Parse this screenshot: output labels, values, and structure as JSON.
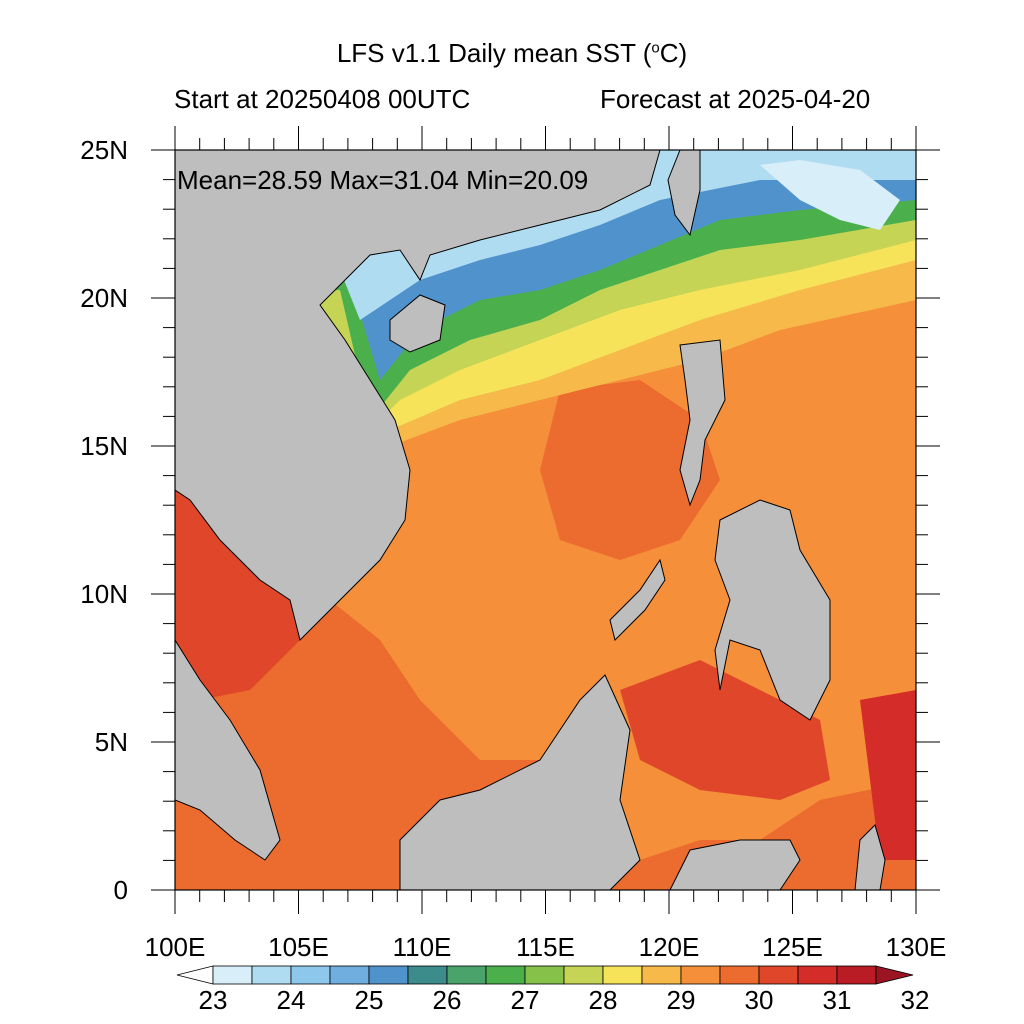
{
  "title": "LFS v1.1 Daily mean SST (",
  "title_unit_sup": "o",
  "title_unit_tail": "C)",
  "subtitle_left": "Start at 20250408 00UTC",
  "subtitle_right": "Forecast at 2025-04-20",
  "stats": "Mean=28.59  Max=31.04  Min=20.09",
  "lat_labels": [
    "25N",
    "20N",
    "15N",
    "10N",
    "5N",
    "0"
  ],
  "lon_labels": [
    "100E",
    "105E",
    "110E",
    "115E",
    "120E",
    "125E",
    "130E"
  ],
  "colorbar": {
    "tick_labels": [
      "23",
      "24",
      "25",
      "26",
      "27",
      "28",
      "29",
      "30",
      "31",
      "32"
    ],
    "colors": [
      "#ffffff",
      "#d8eef9",
      "#b0dcf2",
      "#8ec7ec",
      "#6faedf",
      "#4f92cc",
      "#3d8c8c",
      "#4aa36b",
      "#4bb04b",
      "#86c24a",
      "#c5d455",
      "#f6e35a",
      "#f7b94a",
      "#f58f3a",
      "#ec6b2f",
      "#e0472a",
      "#d42c28",
      "#b91c24",
      "#9b1421"
    ]
  },
  "colors": {
    "land": "#bebebe",
    "frame": "#000000"
  }
}
